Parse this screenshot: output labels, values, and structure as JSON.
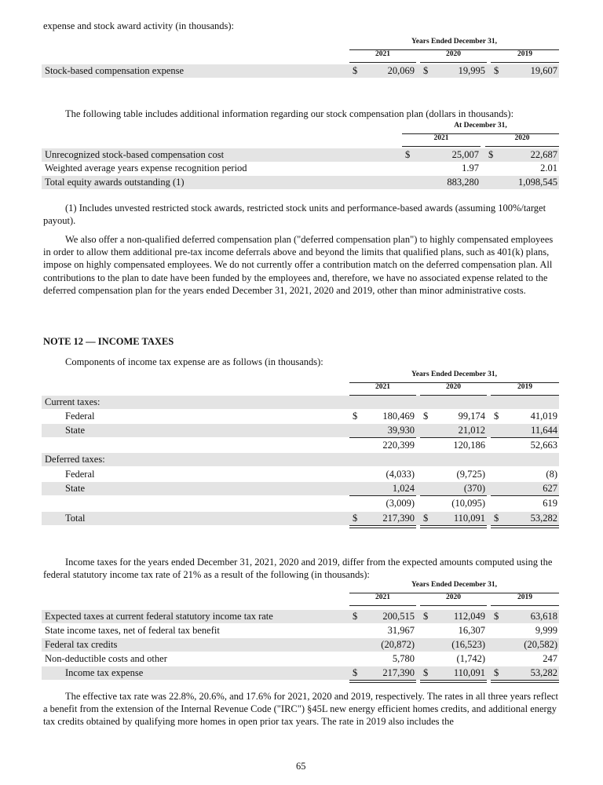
{
  "intro_top": "expense and stock award activity (in thousands):",
  "table1": {
    "group_header": "Years Ended December 31,",
    "years": [
      "2021",
      "2020",
      "2019"
    ],
    "rows": [
      {
        "label": "Stock-based compensation expense",
        "cells": [
          {
            "d": "$",
            "v": "20,069"
          },
          {
            "d": "$",
            "v": "19,995"
          },
          {
            "d": "$",
            "v": "19,607"
          }
        ]
      }
    ]
  },
  "table2_intro": "The following table includes additional information regarding our stock compensation plan (dollars in thousands):",
  "table2": {
    "group_header": "At December 31,",
    "years": [
      "2021",
      "2020"
    ],
    "rows": [
      {
        "label": "Unrecognized stock-based compensation cost",
        "cells": [
          {
            "d": "$",
            "v": "25,007"
          },
          {
            "d": "$",
            "v": "22,687"
          }
        ]
      },
      {
        "label": "Weighted average years expense recognition period",
        "cells": [
          {
            "d": "",
            "v": "1.97"
          },
          {
            "d": "",
            "v": "2.01"
          }
        ]
      },
      {
        "label": "Total equity awards outstanding (1)",
        "cells": [
          {
            "d": "",
            "v": "883,280"
          },
          {
            "d": "",
            "v": "1,098,545"
          }
        ]
      }
    ]
  },
  "footnote": "(1) Includes unvested restricted stock awards, restricted stock units and performance-based awards (assuming 100%/target payout).",
  "deferred_comp_paragraph": "We also offer a non-qualified deferred compensation plan (\"deferred compensation plan\") to highly compensated employees in order to allow them additional pre-tax income deferrals above and beyond the limits that qualified plans, such as 401(k) plans, impose on highly compensated employees. We do not currently offer a contribution match on the deferred compensation plan. All contributions to the plan to date have been funded by the employees and, therefore, we have no associated expense related to the deferred compensation plan for the years ended December 31, 2021, 2020 and 2019, other than minor administrative costs.",
  "note_heading": "NOTE 12 — INCOME TAXES",
  "table3_intro": "Components of income tax expense are as follows (in thousands):",
  "table3": {
    "group_header": "Years Ended December 31,",
    "years": [
      "2021",
      "2020",
      "2019"
    ],
    "rows": [
      {
        "label": "Current taxes:",
        "cells": []
      },
      {
        "label": "Federal",
        "indent": true,
        "cells": [
          {
            "d": "$",
            "v": "180,469"
          },
          {
            "d": "$",
            "v": "99,174"
          },
          {
            "d": "$",
            "v": "41,019"
          }
        ]
      },
      {
        "label": "State",
        "indent": true,
        "cells": [
          {
            "d": "",
            "v": "39,930"
          },
          {
            "d": "",
            "v": "21,012"
          },
          {
            "d": "",
            "v": "11,644"
          }
        ]
      },
      {
        "label": "",
        "cells": [
          {
            "d": "",
            "v": "220,399"
          },
          {
            "d": "",
            "v": "120,186"
          },
          {
            "d": "",
            "v": "52,663"
          }
        ]
      },
      {
        "label": "Deferred taxes:",
        "cells": []
      },
      {
        "label": "Federal",
        "indent": true,
        "cells": [
          {
            "d": "",
            "v": "(4,033)"
          },
          {
            "d": "",
            "v": "(9,725)"
          },
          {
            "d": "",
            "v": "(8)"
          }
        ]
      },
      {
        "label": "State",
        "indent": true,
        "cells": [
          {
            "d": "",
            "v": "1,024"
          },
          {
            "d": "",
            "v": "(370)"
          },
          {
            "d": "",
            "v": "627"
          }
        ]
      },
      {
        "label": "",
        "cells": [
          {
            "d": "",
            "v": "(3,009)"
          },
          {
            "d": "",
            "v": "(10,095)"
          },
          {
            "d": "",
            "v": "619"
          }
        ]
      },
      {
        "label": "Total",
        "indent": true,
        "cells": [
          {
            "d": "$",
            "v": "217,390"
          },
          {
            "d": "$",
            "v": "110,091"
          },
          {
            "d": "$",
            "v": "53,282"
          }
        ]
      }
    ]
  },
  "table4_intro": "Income taxes for the years ended December 31, 2021, 2020 and 2019, differ from the expected amounts computed using the federal statutory income tax rate of 21% as a result of the following (in thousands):",
  "table4": {
    "group_header": "Years Ended December 31,",
    "years": [
      "2021",
      "2020",
      "2019"
    ],
    "rows": [
      {
        "label": "Expected taxes at current federal statutory income tax rate",
        "cells": [
          {
            "d": "$",
            "v": "200,515"
          },
          {
            "d": "$",
            "v": "112,049"
          },
          {
            "d": "$",
            "v": "63,618"
          }
        ]
      },
      {
        "label": "State income taxes, net of federal tax benefit",
        "cells": [
          {
            "d": "",
            "v": "31,967"
          },
          {
            "d": "",
            "v": "16,307"
          },
          {
            "d": "",
            "v": "9,999"
          }
        ]
      },
      {
        "label": "Federal tax credits",
        "cells": [
          {
            "d": "",
            "v": "(20,872)"
          },
          {
            "d": "",
            "v": "(16,523)"
          },
          {
            "d": "",
            "v": "(20,582)"
          }
        ]
      },
      {
        "label": "Non-deductible costs and other",
        "cells": [
          {
            "d": "",
            "v": "5,780"
          },
          {
            "d": "",
            "v": "(1,742)"
          },
          {
            "d": "",
            "v": "247"
          }
        ]
      },
      {
        "label": "Income tax expense",
        "indent": true,
        "cells": [
          {
            "d": "$",
            "v": "217,390"
          },
          {
            "d": "$",
            "v": "110,091"
          },
          {
            "d": "$",
            "v": "53,282"
          }
        ]
      }
    ]
  },
  "effective_rate_paragraph": "The effective tax rate was 22.8%, 20.6%, and 17.6% for 2021, 2020 and 2019, respectively. The rates in all three years reflect a benefit from the extension of the Internal Revenue Code (\"IRC\") §45L new energy efficient homes credits, and additional energy tax credits obtained by qualifying more homes in open prior tax years. The rate in 2019 also includes the",
  "page_number": "65"
}
